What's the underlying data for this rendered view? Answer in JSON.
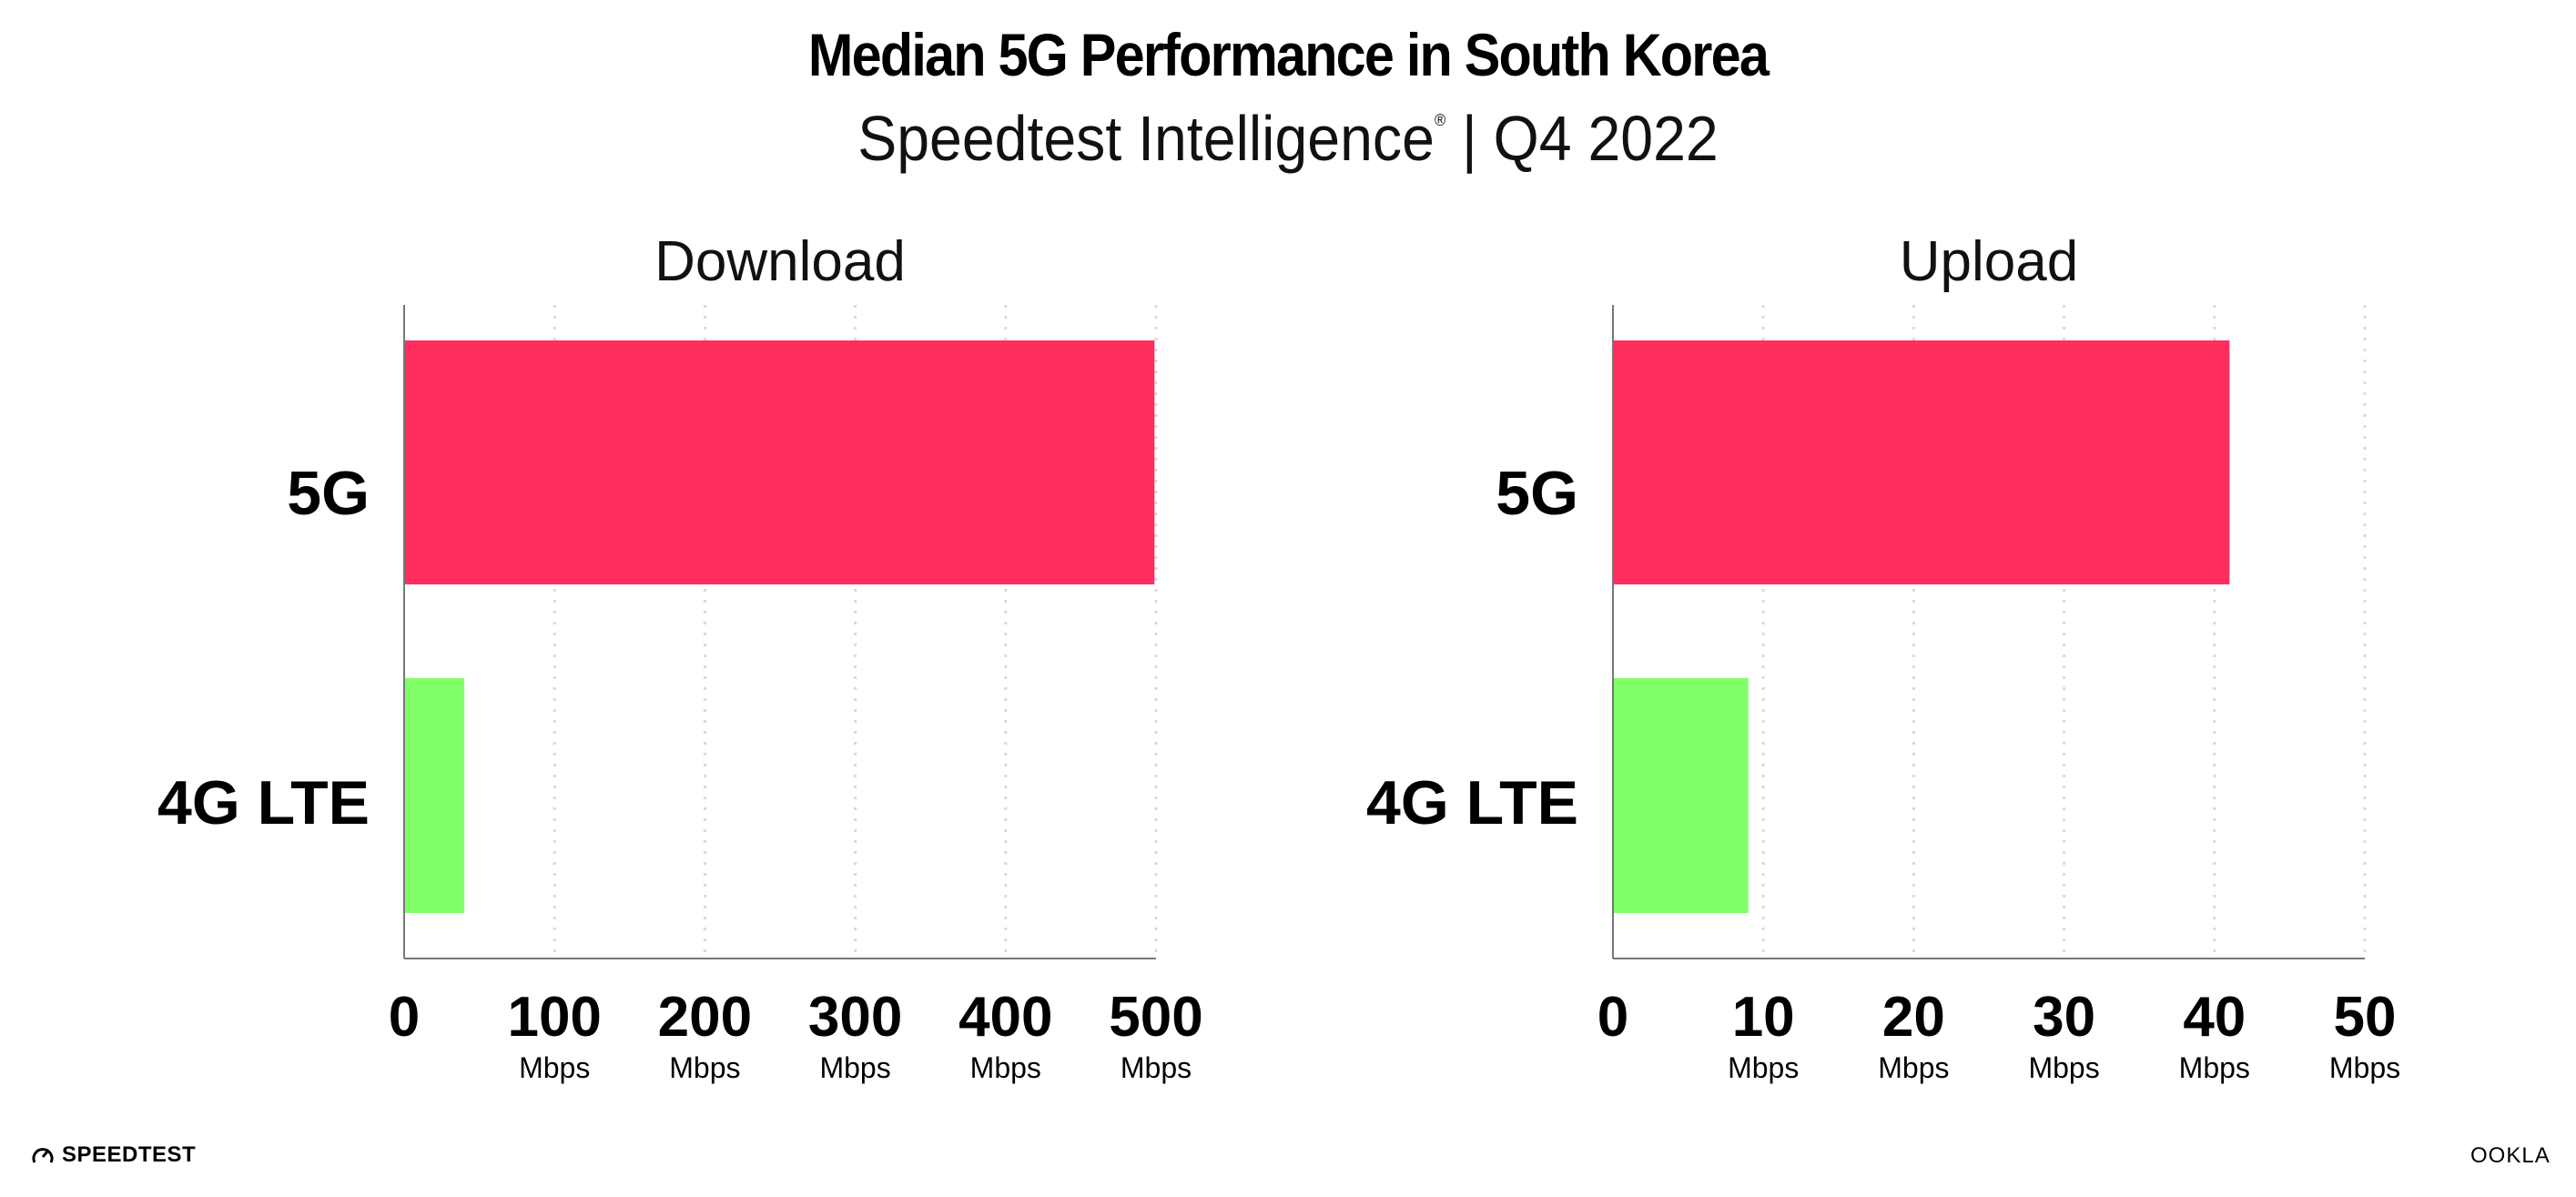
{
  "header": {
    "title": "Median 5G Performance in South Korea",
    "subtitle_main": "Speedtest Intelligence",
    "subtitle_mark": "®",
    "subtitle_period": " | Q4 2022"
  },
  "chart_data": [
    {
      "type": "bar",
      "orientation": "horizontal",
      "title": "Download",
      "categories": [
        "5G",
        "4G LTE"
      ],
      "values": [
        499,
        40
      ],
      "colors": [
        "#ff2e5c",
        "#80ff66"
      ],
      "xlim": [
        0,
        500
      ],
      "ticks": [
        {
          "value": 0,
          "label": "0",
          "unit": ""
        },
        {
          "value": 100,
          "label": "100",
          "unit": "Mbps"
        },
        {
          "value": 200,
          "label": "200",
          "unit": "Mbps"
        },
        {
          "value": 300,
          "label": "300",
          "unit": "Mbps"
        },
        {
          "value": 400,
          "label": "400",
          "unit": "Mbps"
        },
        {
          "value": 500,
          "label": "500",
          "unit": "Mbps"
        }
      ],
      "grid": true
    },
    {
      "type": "bar",
      "orientation": "horizontal",
      "title": "Upload",
      "categories": [
        "5G",
        "4G LTE"
      ],
      "values": [
        41.0,
        9.0
      ],
      "colors": [
        "#ff2e5c",
        "#80ff66"
      ],
      "xlim": [
        0,
        50
      ],
      "ticks": [
        {
          "value": 0,
          "label": "0",
          "unit": ""
        },
        {
          "value": 10,
          "label": "10",
          "unit": "Mbps"
        },
        {
          "value": 20,
          "label": "20",
          "unit": "Mbps"
        },
        {
          "value": 30,
          "label": "30",
          "unit": "Mbps"
        },
        {
          "value": 40,
          "label": "40",
          "unit": "Mbps"
        },
        {
          "value": 50,
          "label": "50",
          "unit": "Mbps"
        }
      ],
      "grid": true
    }
  ],
  "footer": {
    "left_logo": "SPEEDTEST",
    "right_logo": "OOKLA"
  }
}
